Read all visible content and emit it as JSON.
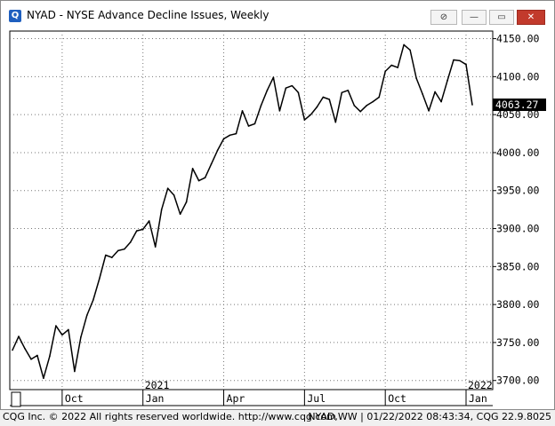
{
  "window": {
    "title": "NYAD - NYSE Advance Decline Issues, Weekly",
    "icon_letter": "Q",
    "buttons": {
      "link": "⊘",
      "minimize": "—",
      "maximize": "▭",
      "close": "✕"
    }
  },
  "footer": {
    "left": "CQG Inc. © 2022 All rights reserved worldwide. http://www.cqg.com",
    "right": "NYAD,WW | 01/22/2022 08:43:34, CQG 22.9.8025"
  },
  "chart_data": {
    "type": "line",
    "title": "NYAD - NYSE Advance Decline Issues, Weekly",
    "xlabel": "",
    "ylabel": "",
    "ylim": [
      3688,
      4160
    ],
    "grid": true,
    "yticks": [
      3700,
      3750,
      3800,
      3850,
      3900,
      3950,
      4000,
      4050,
      4100,
      4150
    ],
    "ytick_labels": [
      "3700.00",
      "3750.00",
      "3800.00",
      "3850.00",
      "3900.00",
      "3950.00",
      "4000.00",
      "4050.00",
      "4100.00",
      "4150.00"
    ],
    "x_month_labels": [
      {
        "label": "Oct",
        "week": 8
      },
      {
        "label": "Jan",
        "week": 21
      },
      {
        "label": "Apr",
        "week": 34
      },
      {
        "label": "Jul",
        "week": 47
      },
      {
        "label": "Oct",
        "week": 60
      },
      {
        "label": "Jan",
        "week": 73
      }
    ],
    "x_year_labels": [
      {
        "label": "2021",
        "week": 21
      },
      {
        "label": "2022",
        "week": 73
      }
    ],
    "last_value_label": "4063.27",
    "values": [
      3740,
      3758,
      3742,
      3728,
      3733,
      3703,
      3732,
      3772,
      3760,
      3767,
      3712,
      3757,
      3786,
      3806,
      3834,
      3865,
      3862,
      3871,
      3873,
      3882,
      3897,
      3899,
      3910,
      3876,
      3925,
      3953,
      3944,
      3919,
      3935,
      3979,
      3963,
      3967,
      3985,
      4003,
      4018,
      4023,
      4025,
      4055,
      4035,
      4038,
      4062,
      4082,
      4099,
      4055,
      4085,
      4088,
      4079,
      4043,
      4050,
      4060,
      4073,
      4070,
      4040,
      4079,
      4082,
      4062,
      4054,
      4062,
      4067,
      4073,
      4107,
      4115,
      4112,
      4142,
      4135,
      4098,
      4077,
      4055,
      4080,
      4067,
      4095,
      4122,
      4121,
      4116,
      4063
    ]
  }
}
